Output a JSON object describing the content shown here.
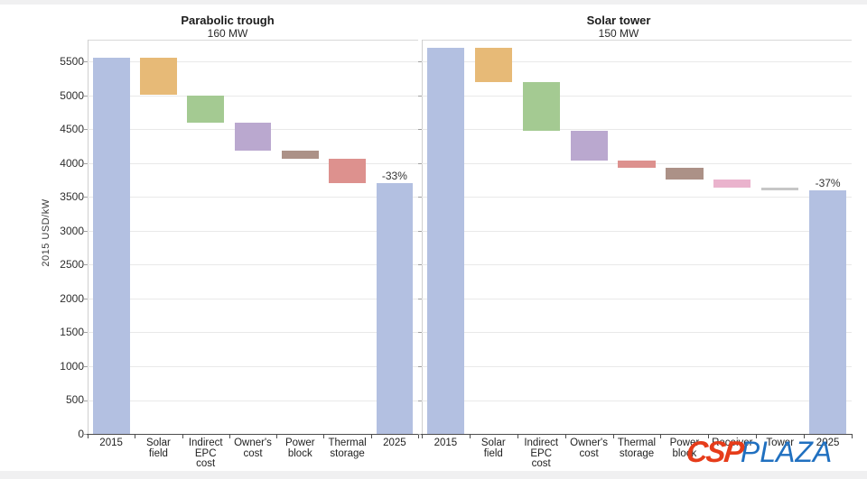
{
  "y_axis": {
    "label": "2015 USD/kW",
    "ticks": [
      0,
      500,
      1000,
      1500,
      2000,
      2500,
      3000,
      3500,
      4000,
      4500,
      5000,
      5500
    ],
    "max": 5500
  },
  "colors": {
    "total": "#b3c0e1",
    "solar_field": "#e7ba77",
    "indirect_epc": "#a4ca92",
    "owners_cost": "#baa8cf",
    "power_block": "#ac9187",
    "thermal_storage": "#dd918e",
    "receiver": "#eab3cd",
    "tower": "#c7c7c7"
  },
  "chart_data": [
    {
      "type": "waterfall",
      "title": "Parabolic trough",
      "subtitle": "160 MW",
      "ylabel": "2015 USD/kW",
      "ylim": [
        0,
        5700
      ],
      "grid": true,
      "categories": [
        "2015",
        "Solar\nfield",
        "Indirect\nEPC\ncost",
        "Owner's\ncost",
        "Power\nblock",
        "Thermal\nstorage",
        "2025"
      ],
      "bars": [
        {
          "key": "2015",
          "label": "2015",
          "start": 0,
          "end": 5550,
          "color": "total"
        },
        {
          "key": "solar-field",
          "label": "Solar\nfield",
          "start": 5000,
          "end": 5550,
          "color": "solar_field"
        },
        {
          "key": "indirect-epc",
          "label": "Indirect\nEPC\ncost",
          "start": 4600,
          "end": 5000,
          "color": "indirect_epc"
        },
        {
          "key": "owners-cost",
          "label": "Owner's\ncost",
          "start": 4180,
          "end": 4600,
          "color": "owners_cost"
        },
        {
          "key": "power-block",
          "label": "Power\nblock",
          "start": 4060,
          "end": 4180,
          "color": "power_block"
        },
        {
          "key": "thermal-storage",
          "label": "Thermal\nstorage",
          "start": 3700,
          "end": 4060,
          "color": "thermal_storage"
        },
        {
          "key": "2025",
          "label": "2025",
          "start": 0,
          "end": 3700,
          "color": "total",
          "annotation": "-33%"
        }
      ]
    },
    {
      "type": "waterfall",
      "title": "Solar tower",
      "subtitle": "150 MW",
      "ylabel": "2015 USD/kW",
      "ylim": [
        0,
        5700
      ],
      "grid": true,
      "categories": [
        "2015",
        "Solar\nfield",
        "Indirect\nEPC\ncost",
        "Owner's\ncost",
        "Thermal\nstorage",
        "Power\nblock",
        "Receiver",
        "Tower",
        "2025"
      ],
      "bars": [
        {
          "key": "2015",
          "label": "2015",
          "start": 0,
          "end": 5700,
          "color": "total"
        },
        {
          "key": "solar-field",
          "label": "Solar\nfield",
          "start": 5200,
          "end": 5700,
          "color": "solar_field"
        },
        {
          "key": "indirect-epc",
          "label": "Indirect\nEPC\ncost",
          "start": 4480,
          "end": 5200,
          "color": "indirect_epc"
        },
        {
          "key": "owners-cost",
          "label": "Owner's\ncost",
          "start": 4030,
          "end": 4480,
          "color": "owners_cost"
        },
        {
          "key": "thermal-storage",
          "label": "Thermal\nstorage",
          "start": 3930,
          "end": 4030,
          "color": "thermal_storage"
        },
        {
          "key": "power-block",
          "label": "Power\nblock",
          "start": 3760,
          "end": 3930,
          "color": "power_block"
        },
        {
          "key": "receiver",
          "label": "Receiver",
          "start": 3630,
          "end": 3760,
          "color": "receiver"
        },
        {
          "key": "tower",
          "label": "Tower",
          "start": 3600,
          "end": 3630,
          "color": "tower"
        },
        {
          "key": "2025",
          "label": "2025",
          "start": 0,
          "end": 3600,
          "color": "total",
          "annotation": "-37%"
        }
      ]
    }
  ],
  "logo": {
    "csp": "CSP",
    "plaza": "PLAZA",
    "csp_color": "#e63c1a",
    "plaza_color": "#2070c0"
  }
}
